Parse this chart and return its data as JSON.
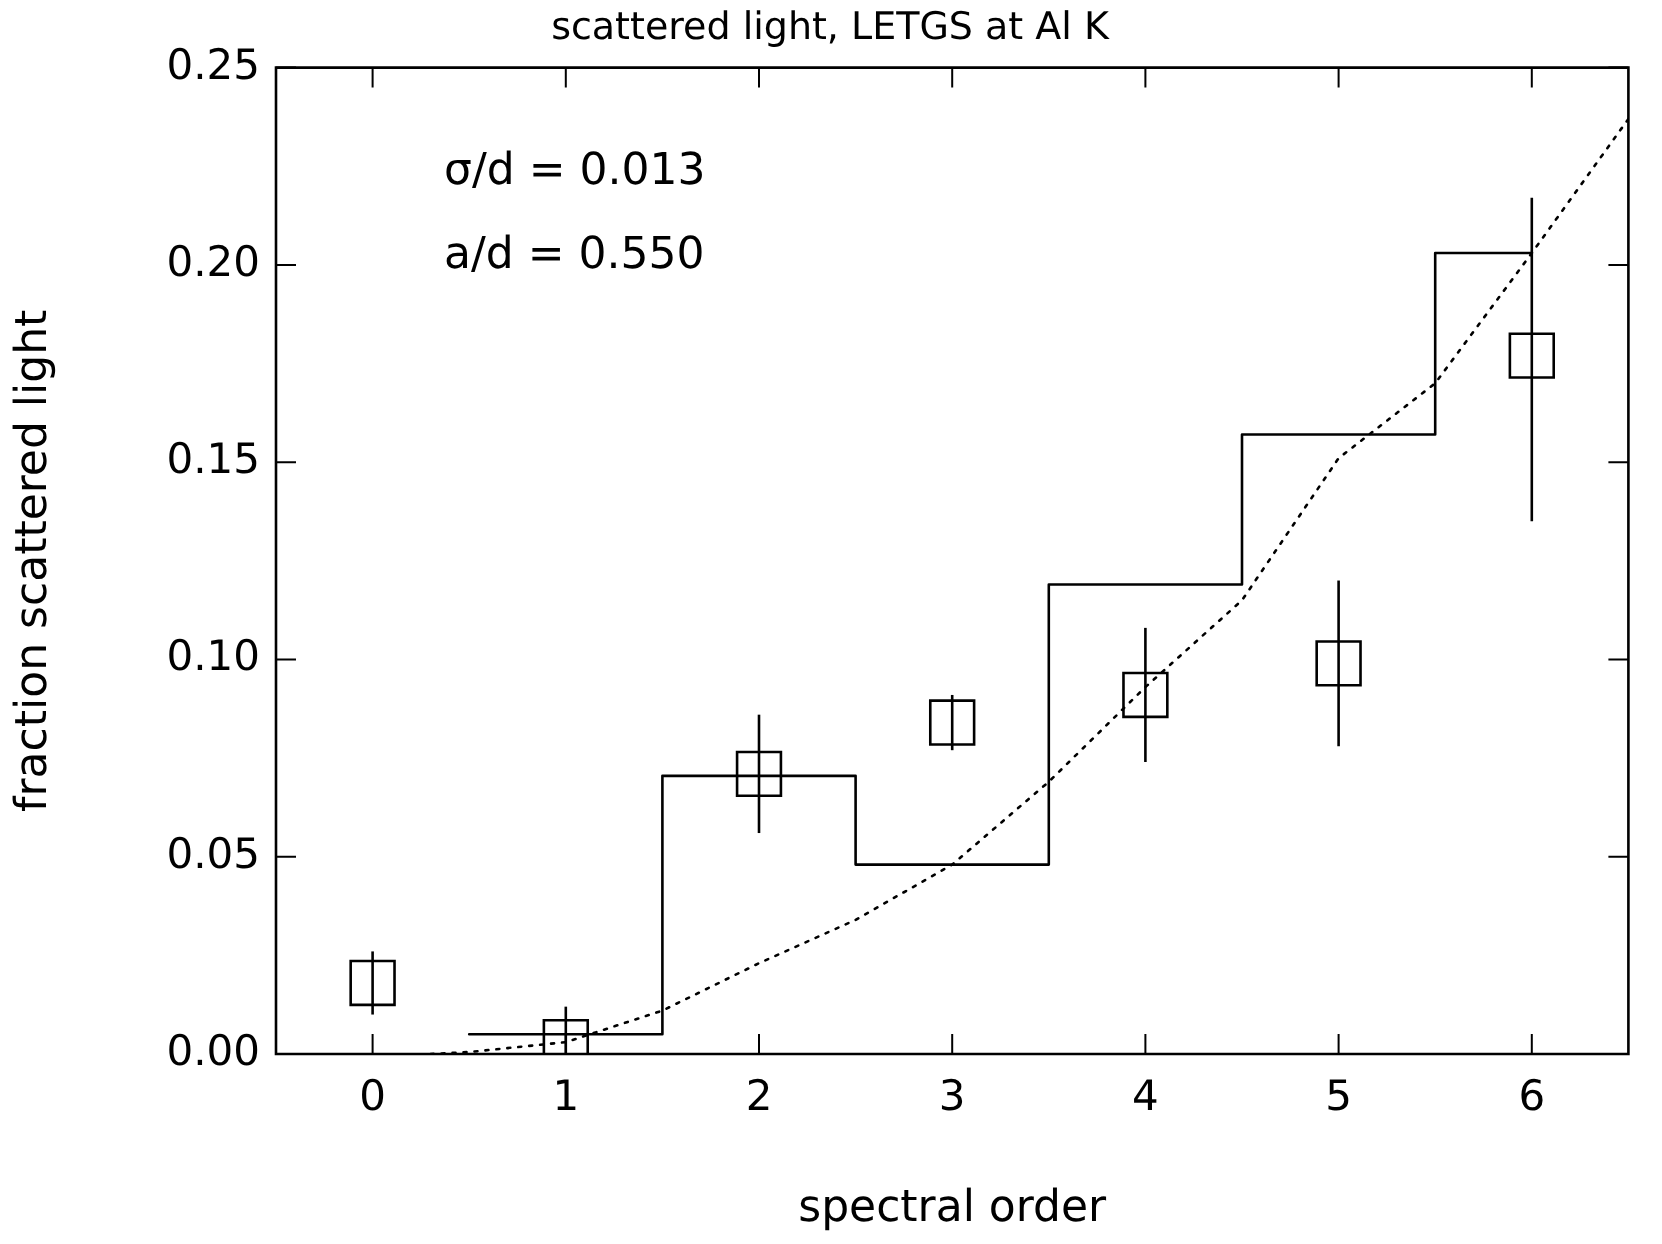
{
  "chart_data": {
    "type": "scatter",
    "title": "scattered light, LETGS at Al K",
    "xlabel": "spectral order",
    "ylabel": "fraction scattered light",
    "xlim": [
      -0.5,
      6.5
    ],
    "xticks": [
      0,
      1,
      2,
      3,
      4,
      5,
      6
    ],
    "ylim": [
      0,
      0.25
    ],
    "yticks": [
      {
        "value": 0,
        "label": "0.00"
      },
      {
        "value": 0.05,
        "label": "0.05"
      },
      {
        "value": 0.1,
        "label": "0.10"
      },
      {
        "value": 0.15,
        "label": "0.15"
      },
      {
        "value": 0.2,
        "label": "0.20"
      },
      {
        "value": 0.25,
        "label": "0.25"
      }
    ],
    "grid": false,
    "legend": false,
    "annotations": [
      "σ/d = 0.013",
      "a/d = 0.550"
    ],
    "series": [
      {
        "color": "#000000",
        "marker": "square",
        "x": [
          0,
          1,
          2,
          3,
          4,
          5,
          6
        ],
        "values": [
          0.018,
          0.003,
          0.071,
          0.084,
          0.091,
          0.099,
          0.177
        ],
        "errors": [
          [
            0.01,
            0.026
          ],
          [
            0,
            0.012
          ],
          [
            0.056,
            0.086
          ],
          [
            0.077,
            0.091
          ],
          [
            0.074,
            0.108
          ],
          [
            0.078,
            0.12
          ],
          [
            0.135,
            0.217
          ]
        ]
      },
      {
        "type": "step",
        "color": "#000000",
        "marker": "none",
        "line_style": "solid",
        "x": [
          0.5,
          1.5,
          2.5,
          3.5,
          4.5,
          5.5,
          6
        ],
        "values": [
          0.005,
          0.0705,
          0.048,
          0.119,
          0.157,
          0.203,
          0.203
        ]
      },
      {
        "type": "line",
        "color": "#000000",
        "marker": "none",
        "line_style": "dotted",
        "x": [
          0.3,
          0.5,
          1,
          1.5,
          2,
          2.5,
          3,
          3.5,
          4,
          4.5,
          5,
          5.5,
          6,
          6.5
        ],
        "values": [
          0,
          0.0005,
          0.003,
          0.011,
          0.023,
          0.034,
          0.048,
          0.069,
          0.093,
          0.115,
          0.151,
          0.17,
          0.203,
          0.237
        ]
      }
    ]
  }
}
